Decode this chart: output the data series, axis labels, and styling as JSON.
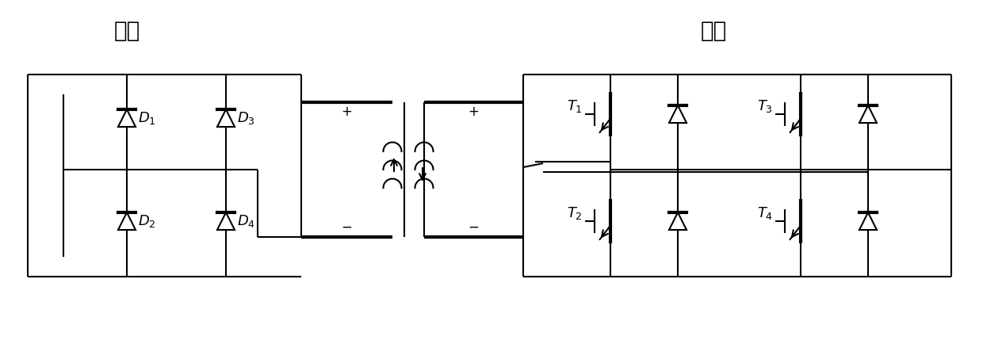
{
  "title_left": "高压",
  "title_right": "低压",
  "bg_color": "#ffffff",
  "line_color": "#000000",
  "lw": 1.5,
  "lw_thick": 3.0,
  "fig_width": 12.4,
  "fig_height": 4.34,
  "dpi": 100
}
